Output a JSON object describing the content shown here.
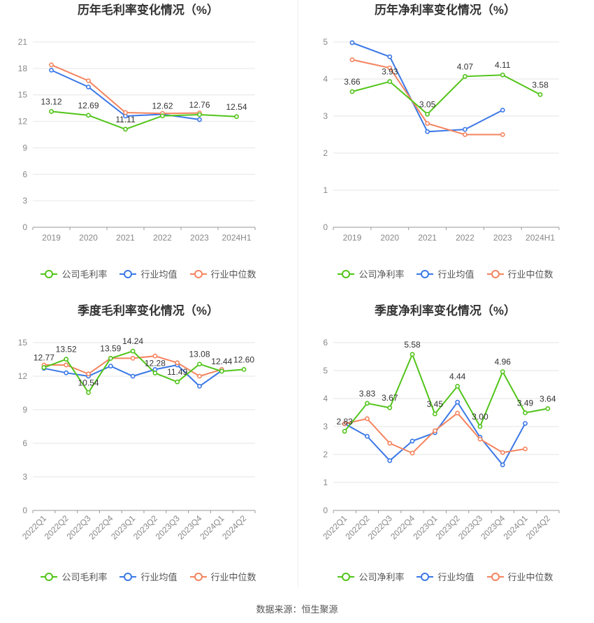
{
  "colors": {
    "company": "#52c41a",
    "industry_avg": "#3b78e7",
    "industry_median": "#f4845f",
    "grid": "#e6e6e6",
    "axis": "#999999"
  },
  "footer": {
    "source": "数据来源：恒生聚源"
  },
  "chart_data": [
    {
      "type": "line",
      "title": "历年毛利率变化情况（%）",
      "categories": [
        "2019",
        "2020",
        "2021",
        "2022",
        "2023",
        "2024H1"
      ],
      "ylim": [
        0,
        21
      ],
      "yticks": [
        0,
        3,
        6,
        9,
        12,
        15,
        18,
        21
      ],
      "grid": true,
      "legend_position": "bottom",
      "series": [
        {
          "name": "公司毛利率",
          "key": "company",
          "values": [
            13.12,
            12.69,
            11.11,
            12.62,
            12.76,
            12.54
          ],
          "labels": [
            "13.12",
            "12.69",
            "11.11",
            "12.62",
            "12.76",
            "12.54"
          ]
        },
        {
          "name": "行业均值",
          "key": "industry_avg",
          "values": [
            17.8,
            15.9,
            12.6,
            12.8,
            12.2,
            null
          ]
        },
        {
          "name": "行业中位数",
          "key": "industry_median",
          "values": [
            18.4,
            16.6,
            13.0,
            12.9,
            12.95,
            null
          ]
        }
      ]
    },
    {
      "type": "line",
      "title": "历年净利率变化情况（%）",
      "categories": [
        "2019",
        "2020",
        "2021",
        "2022",
        "2023",
        "2024H1"
      ],
      "ylim": [
        0,
        5
      ],
      "yticks": [
        0,
        1,
        2,
        3,
        4,
        5
      ],
      "grid": true,
      "legend_position": "bottom",
      "series": [
        {
          "name": "公司净利率",
          "key": "company",
          "values": [
            3.66,
            3.93,
            3.05,
            4.07,
            4.11,
            3.58
          ],
          "labels": [
            "3.66",
            "3.93",
            "3.05",
            "4.07",
            "4.11",
            "3.58"
          ]
        },
        {
          "name": "行业均值",
          "key": "industry_avg",
          "values": [
            4.98,
            4.6,
            2.58,
            2.64,
            3.16,
            null
          ]
        },
        {
          "name": "行业中位数",
          "key": "industry_median",
          "values": [
            4.52,
            4.3,
            2.8,
            2.5,
            2.5,
            null
          ]
        }
      ]
    },
    {
      "type": "line",
      "title": "季度毛利率变化情况（%）",
      "categories": [
        "2022Q1",
        "2022Q2",
        "2022Q3",
        "2022Q4",
        "2023Q1",
        "2023Q2",
        "2023Q3",
        "2023Q4",
        "2024Q1",
        "2024Q2"
      ],
      "ylim": [
        0,
        15
      ],
      "yticks": [
        0,
        3,
        6,
        9,
        12,
        15
      ],
      "grid": true,
      "legend_position": "bottom",
      "series": [
        {
          "name": "公司毛利率",
          "key": "company",
          "values": [
            12.77,
            13.52,
            10.54,
            13.59,
            14.24,
            12.28,
            11.49,
            13.08,
            12.44,
            12.6
          ],
          "labels": [
            "12.77",
            "13.52",
            "10.54",
            "13.59",
            "14.24",
            "12.28",
            "11.49",
            "13.08",
            "12.44",
            "12.60"
          ]
        },
        {
          "name": "行业均值",
          "key": "industry_avg",
          "values": [
            12.7,
            12.3,
            12.0,
            12.9,
            12.0,
            12.6,
            13.0,
            11.1,
            12.5,
            null
          ]
        },
        {
          "name": "行业中位数",
          "key": "industry_median",
          "values": [
            13.0,
            13.0,
            12.2,
            13.6,
            13.6,
            13.8,
            13.2,
            12.0,
            12.6,
            null
          ]
        }
      ]
    },
    {
      "type": "line",
      "title": "季度净利率变化情况（%）",
      "categories": [
        "2022Q1",
        "2022Q2",
        "2022Q3",
        "2022Q4",
        "2023Q1",
        "2023Q2",
        "2023Q3",
        "2023Q4",
        "2024Q1",
        "2024Q2"
      ],
      "ylim": [
        0,
        6
      ],
      "yticks": [
        0,
        1,
        2,
        3,
        4,
        5,
        6
      ],
      "grid": true,
      "legend_position": "bottom",
      "series": [
        {
          "name": "公司净利率",
          "key": "company",
          "values": [
            2.83,
            3.83,
            3.67,
            5.58,
            3.45,
            4.44,
            3.0,
            4.96,
            3.49,
            3.64
          ],
          "labels": [
            "2.83",
            "3.83",
            "3.67",
            "5.58",
            "3.45",
            "4.44",
            "3.00",
            "4.96",
            "3.49",
            "3.64"
          ]
        },
        {
          "name": "行业均值",
          "key": "industry_avg",
          "values": [
            3.1,
            2.65,
            1.78,
            2.48,
            2.78,
            3.87,
            2.62,
            1.63,
            3.11,
            null
          ]
        },
        {
          "name": "行业中位数",
          "key": "industry_median",
          "values": [
            3.1,
            3.28,
            2.4,
            2.05,
            2.85,
            3.48,
            2.55,
            2.07,
            2.2,
            null
          ]
        }
      ]
    }
  ]
}
